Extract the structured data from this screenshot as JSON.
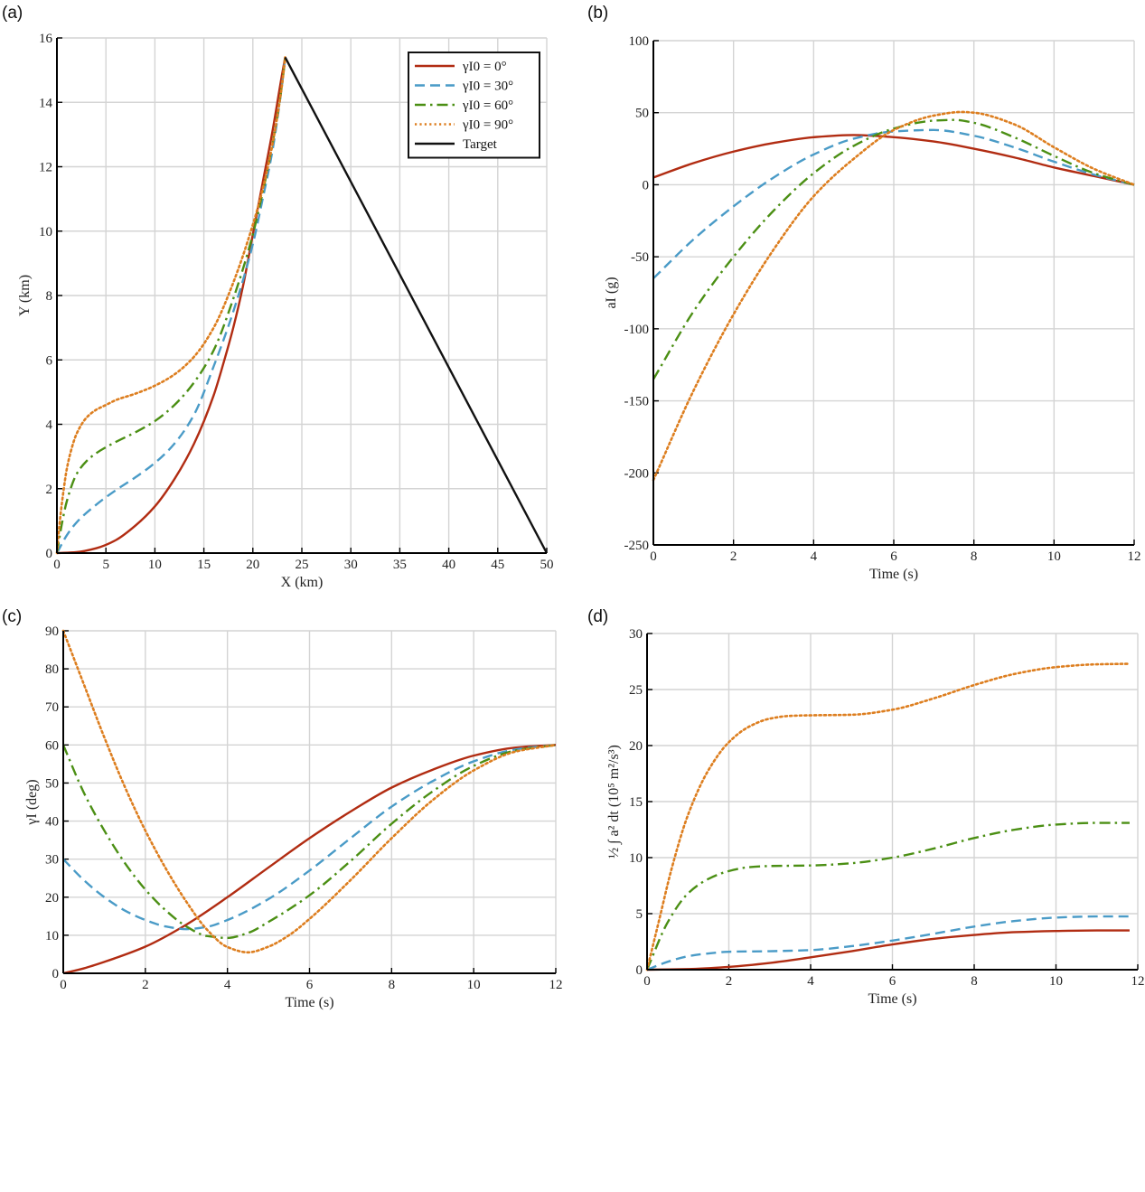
{
  "colors": {
    "s0": "#b12c12",
    "s30": "#4a9bc7",
    "s60": "#4b8f14",
    "s90": "#dd7e1f",
    "target": "#111111"
  },
  "chart_data": [
    {
      "panel_label": "(a)",
      "type": "line",
      "xlabel": "X (km)",
      "ylabel": "Y (km)",
      "xlim": [
        0,
        50
      ],
      "ylim": [
        0,
        16
      ],
      "xticks": [
        0,
        5,
        10,
        15,
        20,
        25,
        30,
        35,
        40,
        45,
        50
      ],
      "yticks": [
        0,
        2,
        4,
        6,
        8,
        10,
        12,
        14,
        16
      ],
      "grid": true,
      "legend": {
        "placement": "top-right",
        "entries": [
          {
            "label": "γI0 = 0°",
            "series": 0
          },
          {
            "label": "γI0 = 30°",
            "series": 1
          },
          {
            "label": "γI0 = 60°",
            "series": 2
          },
          {
            "label": "γI0 = 90°",
            "series": 3
          },
          {
            "label": "Target",
            "series": 4
          }
        ]
      },
      "series": [
        {
          "name": "γI0 = 0°",
          "color": "s0",
          "style": "solid",
          "x": [
            0,
            2,
            4,
            6,
            8,
            10,
            12,
            14,
            16,
            17,
            18,
            19,
            20,
            21,
            22,
            23,
            23.3
          ],
          "y": [
            0,
            0.03,
            0.15,
            0.4,
            0.85,
            1.45,
            2.3,
            3.4,
            4.9,
            5.9,
            7.0,
            8.3,
            9.9,
            11.5,
            13.1,
            14.9,
            15.4
          ]
        },
        {
          "name": "γI0 = 30°",
          "color": "s30",
          "style": "dashed",
          "x": [
            0,
            1,
            2,
            4,
            6,
            8,
            10,
            12,
            14,
            16,
            18,
            20,
            21,
            22,
            23,
            23.3
          ],
          "y": [
            0,
            0.55,
            0.95,
            1.5,
            1.95,
            2.35,
            2.8,
            3.4,
            4.3,
            5.8,
            7.5,
            9.6,
            11.0,
            12.5,
            14.6,
            15.4
          ]
        },
        {
          "name": "γI0 = 60°",
          "color": "s60",
          "style": "dashdot",
          "x": [
            0,
            0.5,
            1,
            2,
            3,
            4,
            6,
            8,
            10,
            12,
            14,
            16,
            18,
            20,
            21,
            22,
            23,
            23.3
          ],
          "y": [
            0,
            0.9,
            1.6,
            2.45,
            2.85,
            3.1,
            3.45,
            3.75,
            4.1,
            4.6,
            5.3,
            6.3,
            7.9,
            9.9,
            11.2,
            12.7,
            14.6,
            15.4
          ]
        },
        {
          "name": "γI0 = 90°",
          "color": "s90",
          "style": "dotted",
          "x": [
            0,
            0.3,
            0.7,
            1,
            1.5,
            2,
            3,
            4,
            5,
            6,
            8,
            10,
            12,
            14,
            16,
            18,
            20,
            21,
            22,
            23,
            23.3
          ],
          "y": [
            0,
            1.0,
            2.0,
            2.6,
            3.25,
            3.7,
            4.2,
            4.45,
            4.6,
            4.75,
            4.95,
            5.2,
            5.55,
            6.1,
            7.0,
            8.4,
            10.2,
            11.3,
            12.7,
            14.6,
            15.4
          ]
        },
        {
          "name": "Target",
          "color": "target",
          "style": "solid",
          "x": [
            23.3,
            50
          ],
          "y": [
            15.4,
            0
          ]
        }
      ]
    },
    {
      "panel_label": "(b)",
      "type": "line",
      "xlabel": "Time (s)",
      "ylabel": "aI (g)",
      "xlim": [
        0,
        12
      ],
      "ylim": [
        -250,
        100
      ],
      "xticks": [
        0,
        2,
        4,
        6,
        8,
        10,
        12
      ],
      "yticks": [
        -250,
        -200,
        -150,
        -100,
        -50,
        0,
        50,
        100
      ],
      "grid": true,
      "series": [
        {
          "name": "γI0 = 0°",
          "color": "s0",
          "style": "solid",
          "x": [
            0,
            1,
            2,
            3,
            4,
            5,
            6,
            7,
            8,
            9,
            10,
            11,
            12
          ],
          "y": [
            5,
            15,
            23,
            29,
            33,
            34.5,
            33,
            30,
            25,
            19,
            12,
            6,
            0
          ]
        },
        {
          "name": "γI0 = 30°",
          "color": "s30",
          "style": "dashed",
          "x": [
            0,
            1,
            2,
            3,
            4,
            5,
            6,
            7,
            8,
            9,
            10,
            11,
            12
          ],
          "y": [
            -65,
            -38,
            -15,
            5,
            21,
            32,
            37,
            38,
            34,
            26,
            16,
            7,
            0
          ]
        },
        {
          "name": "γI0 = 60°",
          "color": "s60",
          "style": "dashdot",
          "x": [
            0,
            1,
            2,
            3,
            4,
            5,
            6,
            7,
            7.5,
            8,
            9,
            10,
            11,
            12
          ],
          "y": [
            -135,
            -88,
            -50,
            -18,
            8,
            27,
            39,
            44.5,
            45,
            43,
            33,
            20,
            8,
            0
          ]
        },
        {
          "name": "γI0 = 90°",
          "color": "s90",
          "style": "dotted",
          "x": [
            0,
            1,
            2,
            3,
            4,
            5,
            6,
            7,
            7.7,
            8,
            9,
            10,
            11,
            12
          ],
          "y": [
            -205,
            -143,
            -90,
            -45,
            -8,
            18,
            38,
            48,
            50.5,
            50,
            42,
            26,
            11,
            0
          ]
        }
      ]
    },
    {
      "panel_label": "(c)",
      "type": "line",
      "xlabel": "Time (s)",
      "ylabel": "γI (deg)",
      "xlim": [
        0,
        12
      ],
      "ylim": [
        0,
        90
      ],
      "xticks": [
        0,
        2,
        4,
        6,
        8,
        10,
        12
      ],
      "yticks": [
        0,
        10,
        20,
        30,
        40,
        50,
        60,
        70,
        80,
        90
      ],
      "grid": true,
      "series": [
        {
          "name": "γI0 = 0°",
          "color": "s0",
          "style": "solid",
          "x": [
            0,
            0.5,
            1,
            2,
            3,
            4,
            5,
            6,
            7,
            8,
            9,
            10,
            11,
            12
          ],
          "y": [
            0,
            1.3,
            3,
            7,
            12.8,
            20,
            27.8,
            35.5,
            42.5,
            48.8,
            53.5,
            57.2,
            59.3,
            60
          ]
        },
        {
          "name": "γI0 = 30°",
          "color": "s30",
          "style": "dashed",
          "x": [
            0,
            0.5,
            1,
            1.5,
            2,
            2.5,
            3,
            3.5,
            4,
            5,
            6,
            7,
            8,
            9,
            10,
            11,
            12
          ],
          "y": [
            30,
            24.5,
            20,
            16.5,
            14,
            12.3,
            11.6,
            12.2,
            14,
            19.5,
            27,
            35.5,
            43.8,
            50.5,
            55.7,
            58.8,
            60
          ]
        },
        {
          "name": "γI0 = 60°",
          "color": "s60",
          "style": "dashdot",
          "x": [
            0,
            0.5,
            1,
            1.5,
            2,
            2.5,
            3,
            3.5,
            4,
            4.5,
            5,
            6,
            7,
            8,
            9,
            10,
            11,
            12
          ],
          "y": [
            60,
            47.5,
            37.5,
            29,
            22,
            16.5,
            12.3,
            9.8,
            9.3,
            10.6,
            13.5,
            20.5,
            29.5,
            39.3,
            47.8,
            54.5,
            58.5,
            60
          ]
        },
        {
          "name": "γI0 = 90°",
          "color": "s90",
          "style": "dotted",
          "x": [
            0,
            0.5,
            1,
            1.5,
            2,
            2.5,
            3,
            3.5,
            4,
            4.5,
            5,
            5.5,
            6,
            7,
            8,
            9,
            10,
            11,
            12
          ],
          "y": [
            90,
            76,
            62,
            49,
            37.5,
            27.5,
            18.8,
            11.5,
            6.9,
            5.5,
            7,
            10,
            14.3,
            24.5,
            35.5,
            45.5,
            53.3,
            58.2,
            60
          ]
        }
      ]
    },
    {
      "panel_label": "(d)",
      "type": "line",
      "xlabel": "Time (s)",
      "ylabel": "½ ∫ a² dt   (10⁵ m²/s³)",
      "xlim": [
        0,
        12
      ],
      "ylim": [
        0,
        30
      ],
      "xticks": [
        0,
        2,
        4,
        6,
        8,
        10,
        12
      ],
      "yticks": [
        0,
        5,
        10,
        15,
        20,
        25,
        30
      ],
      "grid": true,
      "series": [
        {
          "name": "γI0 = 0°",
          "color": "s0",
          "style": "solid",
          "x": [
            0,
            1,
            2,
            3,
            4,
            5,
            6,
            7,
            8,
            9,
            10,
            11,
            11.8
          ],
          "y": [
            0,
            0.05,
            0.25,
            0.6,
            1.1,
            1.65,
            2.25,
            2.75,
            3.1,
            3.35,
            3.45,
            3.5,
            3.5
          ]
        },
        {
          "name": "γI0 = 30°",
          "color": "s30",
          "style": "dashed",
          "x": [
            0,
            0.5,
            1,
            1.5,
            2,
            3,
            4,
            5,
            6,
            7,
            8,
            9,
            10,
            11,
            11.8
          ],
          "y": [
            0,
            0.7,
            1.2,
            1.45,
            1.6,
            1.65,
            1.75,
            2.1,
            2.6,
            3.2,
            3.85,
            4.35,
            4.65,
            4.75,
            4.75
          ]
        },
        {
          "name": "γI0 = 60°",
          "color": "s60",
          "style": "dashdot",
          "x": [
            0,
            0.5,
            1,
            1.5,
            2,
            2.5,
            3,
            4,
            5,
            6,
            7,
            8,
            9,
            10,
            11,
            11.8
          ],
          "y": [
            0,
            4.2,
            6.8,
            8.1,
            8.8,
            9.15,
            9.25,
            9.3,
            9.5,
            10.0,
            10.8,
            11.75,
            12.5,
            12.95,
            13.1,
            13.1
          ]
        },
        {
          "name": "γI0 = 90°",
          "color": "s90",
          "style": "dotted",
          "x": [
            0,
            0.3,
            0.6,
            1,
            1.5,
            2,
            2.5,
            3,
            3.5,
            4,
            5,
            6,
            7,
            8,
            9,
            10,
            11,
            11.8
          ],
          "y": [
            0,
            4.5,
            9.0,
            13.8,
            17.8,
            20.3,
            21.7,
            22.4,
            22.65,
            22.7,
            22.75,
            23.2,
            24.2,
            25.4,
            26.4,
            27.0,
            27.25,
            27.3
          ]
        }
      ]
    }
  ]
}
